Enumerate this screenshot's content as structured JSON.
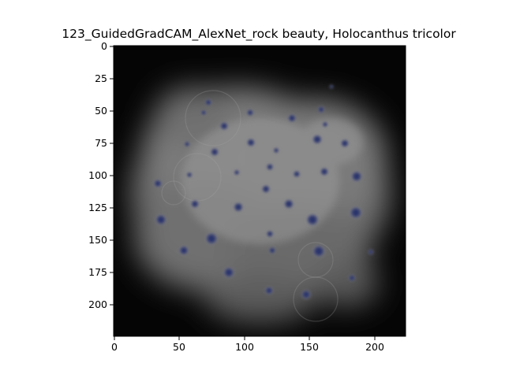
{
  "title": "123_GuidedGradCAM_AlexNet_rock beauty, Holocanthus tricolor",
  "image_description": "Guided Grad-CAM saliency map: grayscale glowing blob with dark blue-ish dots on black background",
  "axes": {
    "x_ticks": [
      "0",
      "50",
      "100",
      "150",
      "200"
    ],
    "y_ticks": [
      "0",
      "25",
      "50",
      "75",
      "100",
      "125",
      "150",
      "175",
      "200"
    ],
    "x_range": [
      0,
      224
    ],
    "y_range": [
      0,
      224
    ]
  },
  "colors": {
    "background": "#000000",
    "glow": "#8a8a8a",
    "spot": "#2a2f5a"
  }
}
